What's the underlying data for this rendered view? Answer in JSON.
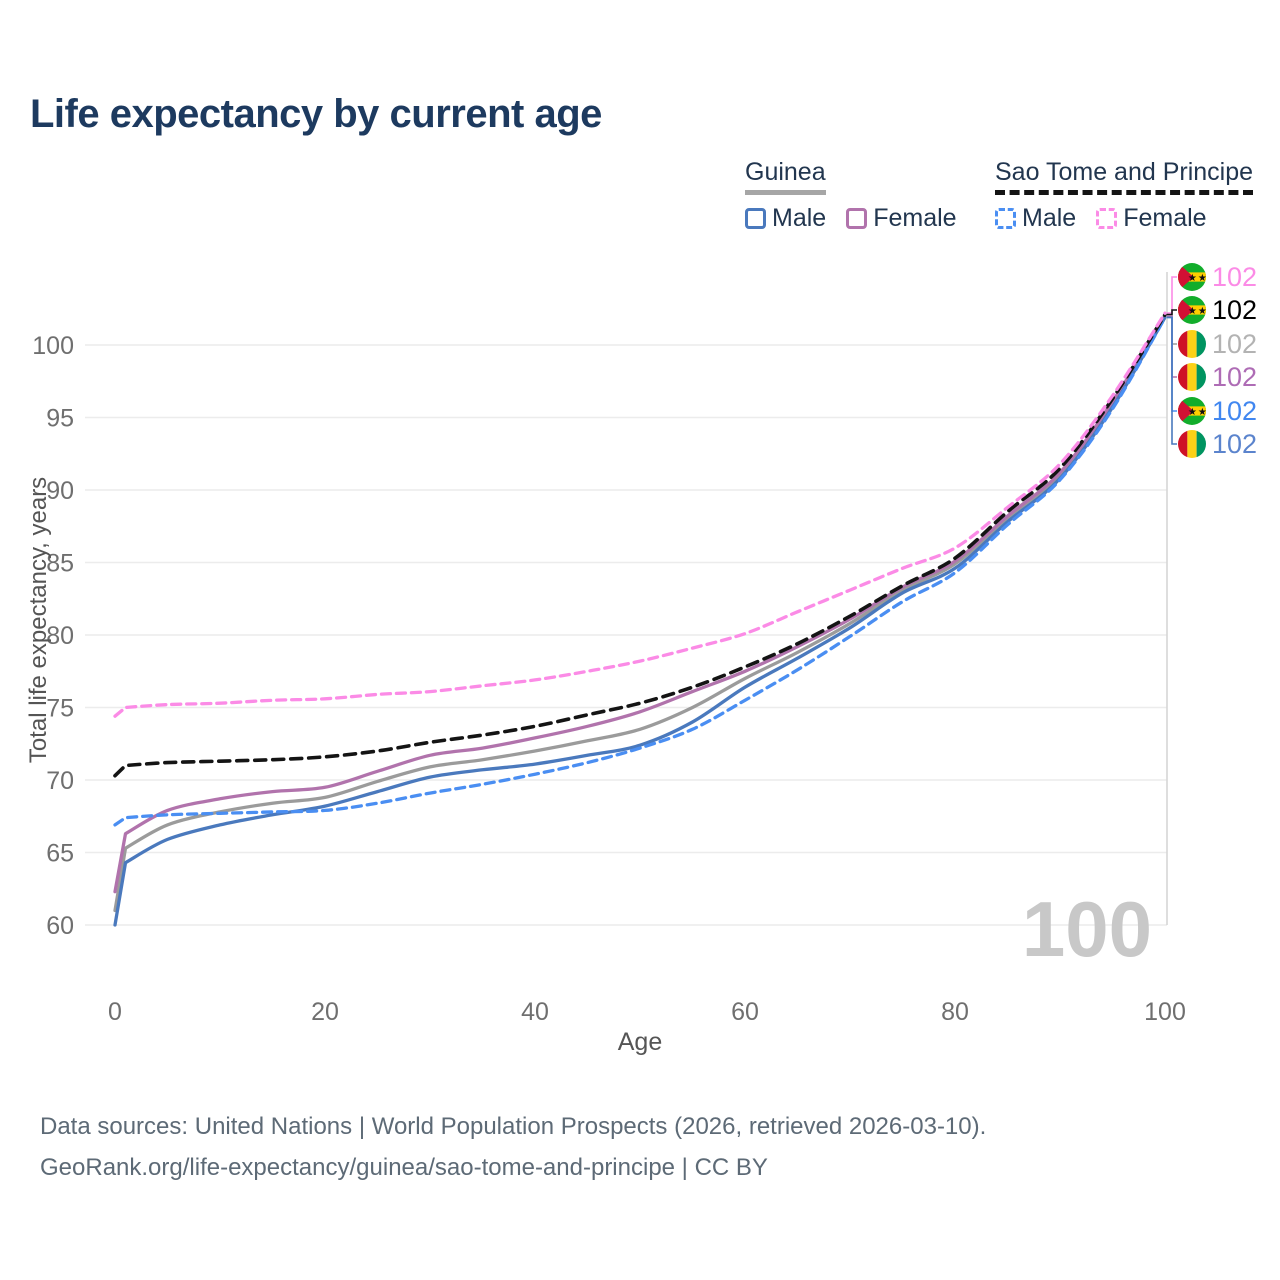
{
  "title": "Life expectancy by current age",
  "watermark": "100",
  "caption_line1": "Data sources: United Nations | World Population Prospects (2026, retrieved 2026-03-10).",
  "caption_line2": "GeoRank.org/life-expectancy/guinea/sao-tome-and-principe | CC BY",
  "legend": {
    "groups": [
      {
        "name": "Guinea",
        "underline": "solid",
        "underline_color": "#a6a6a6",
        "items": [
          {
            "label": "Male",
            "color": "#4a79bd",
            "dashed": false
          },
          {
            "label": "Female",
            "color": "#b173ac",
            "dashed": false
          }
        ]
      },
      {
        "name": "Sao Tome and Principe",
        "underline": "dashed",
        "underline_color": "#141414",
        "items": [
          {
            "label": "Male",
            "color": "#4a8ef2",
            "dashed": true
          },
          {
            "label": "Female",
            "color": "#fb8be6",
            "dashed": true
          }
        ]
      }
    ]
  },
  "chart_data": {
    "type": "line",
    "title": "Life expectancy by current age",
    "xlabel": "Age",
    "ylabel": "Total life expectancy, years",
    "xlim": [
      0,
      100
    ],
    "ylim": [
      57.5,
      103
    ],
    "xticks": [
      0,
      20,
      40,
      60,
      80,
      100
    ],
    "yticks": [
      60,
      65,
      70,
      75,
      80,
      85,
      90,
      95,
      100
    ],
    "grid": true,
    "legend_position": "top-right",
    "current_age_cursor": 100,
    "x": [
      0,
      1,
      5,
      10,
      15,
      20,
      25,
      30,
      35,
      40,
      45,
      50,
      55,
      60,
      65,
      70,
      75,
      80,
      85,
      90,
      95,
      100
    ],
    "series": [
      {
        "id": "guinea_total",
        "name": "Guinea Total",
        "color": "#9b9b9b",
        "dashed": false,
        "values": [
          61.0,
          65.3,
          66.9,
          67.8,
          68.4,
          68.8,
          69.9,
          70.9,
          71.4,
          72.0,
          72.7,
          73.5,
          75.0,
          77.0,
          78.8,
          80.8,
          83.1,
          84.9,
          88.0,
          91.0,
          95.9,
          102.0
        ]
      },
      {
        "id": "guinea_female",
        "name": "Guinea Female",
        "color": "#b173ac",
        "dashed": false,
        "values": [
          62.3,
          66.3,
          67.9,
          68.7,
          69.2,
          69.5,
          70.6,
          71.7,
          72.2,
          72.9,
          73.7,
          74.7,
          76.1,
          77.5,
          79.2,
          81.1,
          83.3,
          85.1,
          88.2,
          91.2,
          96.1,
          102.0
        ]
      },
      {
        "id": "guinea_male",
        "name": "Guinea Male",
        "color": "#4a79bd",
        "dashed": false,
        "values": [
          60.0,
          64.3,
          65.9,
          66.9,
          67.6,
          68.2,
          69.2,
          70.2,
          70.7,
          71.1,
          71.7,
          72.4,
          74.0,
          76.4,
          78.4,
          80.5,
          82.9,
          84.6,
          87.8,
          90.8,
          95.7,
          101.9
        ]
      },
      {
        "id": "stp_male",
        "name": "Sao Tome and Principe Male",
        "color": "#4a8ef2",
        "dashed": true,
        "values": [
          66.9,
          67.4,
          67.6,
          67.7,
          67.8,
          67.9,
          68.4,
          69.1,
          69.7,
          70.4,
          71.2,
          72.2,
          73.5,
          75.5,
          77.6,
          79.9,
          82.3,
          84.3,
          87.6,
          90.7,
          95.6,
          101.9
        ]
      },
      {
        "id": "stp_total",
        "name": "Sao Tome and Principe Total",
        "color": "#141414",
        "dashed": true,
        "values": [
          70.3,
          71.0,
          71.2,
          71.3,
          71.4,
          71.6,
          72.0,
          72.6,
          73.1,
          73.7,
          74.5,
          75.3,
          76.4,
          77.8,
          79.4,
          81.3,
          83.4,
          85.3,
          88.5,
          91.5,
          96.3,
          102.1
        ]
      },
      {
        "id": "stp_female",
        "name": "Sao Tome and Principe Female",
        "color": "#fb8be6",
        "dashed": true,
        "values": [
          74.4,
          75.0,
          75.2,
          75.3,
          75.5,
          75.6,
          75.9,
          76.1,
          76.5,
          76.9,
          77.5,
          78.2,
          79.1,
          80.1,
          81.6,
          83.1,
          84.6,
          86.0,
          88.8,
          91.8,
          96.5,
          102.2
        ]
      }
    ],
    "end_labels": [
      {
        "series": "stp_female",
        "flag": "stp",
        "value": "102",
        "color": "#fb8be6"
      },
      {
        "series": "stp_total",
        "flag": "stp",
        "value": "102",
        "color": "#000000"
      },
      {
        "series": "guinea_total",
        "flag": "guinea",
        "value": "102",
        "color": "#b3b3b3"
      },
      {
        "series": "guinea_female",
        "flag": "guinea",
        "value": "102",
        "color": "#ae6cb5"
      },
      {
        "series": "stp_male",
        "flag": "stp",
        "value": "102",
        "color": "#4187f0"
      },
      {
        "series": "guinea_male",
        "flag": "guinea",
        "value": "102",
        "color": "#5b84cd"
      }
    ],
    "flag_colors": {
      "stp": {
        "green": "#12ad2b",
        "yellow": "#ffce00",
        "red": "#d21034",
        "star": "#111111"
      },
      "guinea": {
        "red": "#ce1126",
        "yellow": "#fcd116",
        "green": "#009460"
      }
    }
  }
}
